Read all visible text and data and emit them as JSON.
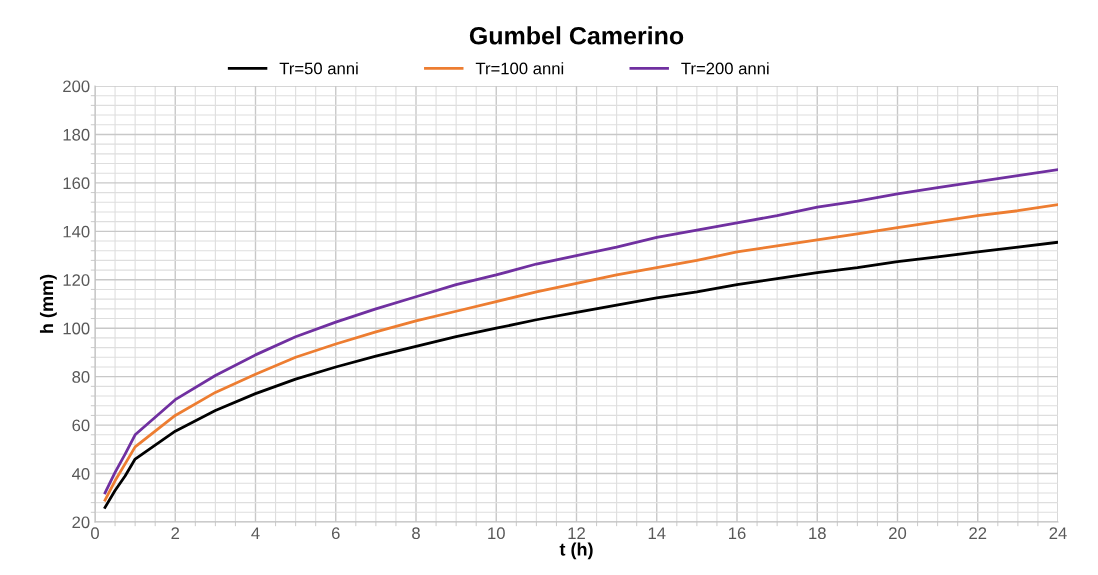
{
  "chart_data": {
    "type": "line",
    "title": "Gumbel Camerino",
    "xlabel": "t (h)",
    "ylabel": "h (mm)",
    "x": [
      0.25,
      0.5,
      0.75,
      1,
      2,
      3,
      4,
      5,
      6,
      7,
      8,
      9,
      10,
      11,
      12,
      13,
      14,
      15,
      16,
      17,
      18,
      19,
      20,
      21,
      22,
      23,
      24
    ],
    "series": [
      {
        "name": "Tr=50 anni",
        "color": "#000000",
        "values": [
          26,
          33,
          39,
          46,
          57.5,
          66,
          73,
          79,
          84,
          88.5,
          92.5,
          96.5,
          100,
          103.5,
          106.5,
          109.5,
          112.5,
          115,
          118,
          120.5,
          123,
          125,
          127.5,
          129.5,
          131.5,
          133.5,
          135.5
        ]
      },
      {
        "name": "Tr=100 anni",
        "color": "#ed7d31",
        "values": [
          29,
          37,
          44,
          51,
          64,
          73.5,
          81,
          88,
          93.5,
          98.5,
          103,
          107,
          111,
          115,
          118.5,
          122,
          125,
          128,
          131.5,
          134,
          136.5,
          139,
          141.5,
          144,
          146.5,
          148.5,
          151
        ]
      },
      {
        "name": "Tr=200 anni",
        "color": "#7030a0",
        "values": [
          32,
          40.5,
          48,
          56,
          70.5,
          80.5,
          89,
          96.5,
          102.5,
          108,
          113,
          118,
          122,
          126.5,
          130,
          133.5,
          137.5,
          140.5,
          143.5,
          146.5,
          150,
          152.5,
          155.5,
          158,
          160.5,
          163,
          165.5
        ]
      }
    ],
    "xlim": [
      0,
      24
    ],
    "ylim": [
      20,
      200
    ],
    "xticks": [
      0,
      2,
      4,
      6,
      8,
      10,
      12,
      14,
      16,
      18,
      20,
      22,
      24
    ],
    "yticks": [
      20,
      40,
      60,
      80,
      100,
      120,
      140,
      160,
      180,
      200
    ],
    "grid": true,
    "legend": "top",
    "marker": "none",
    "line_style": "solid"
  }
}
